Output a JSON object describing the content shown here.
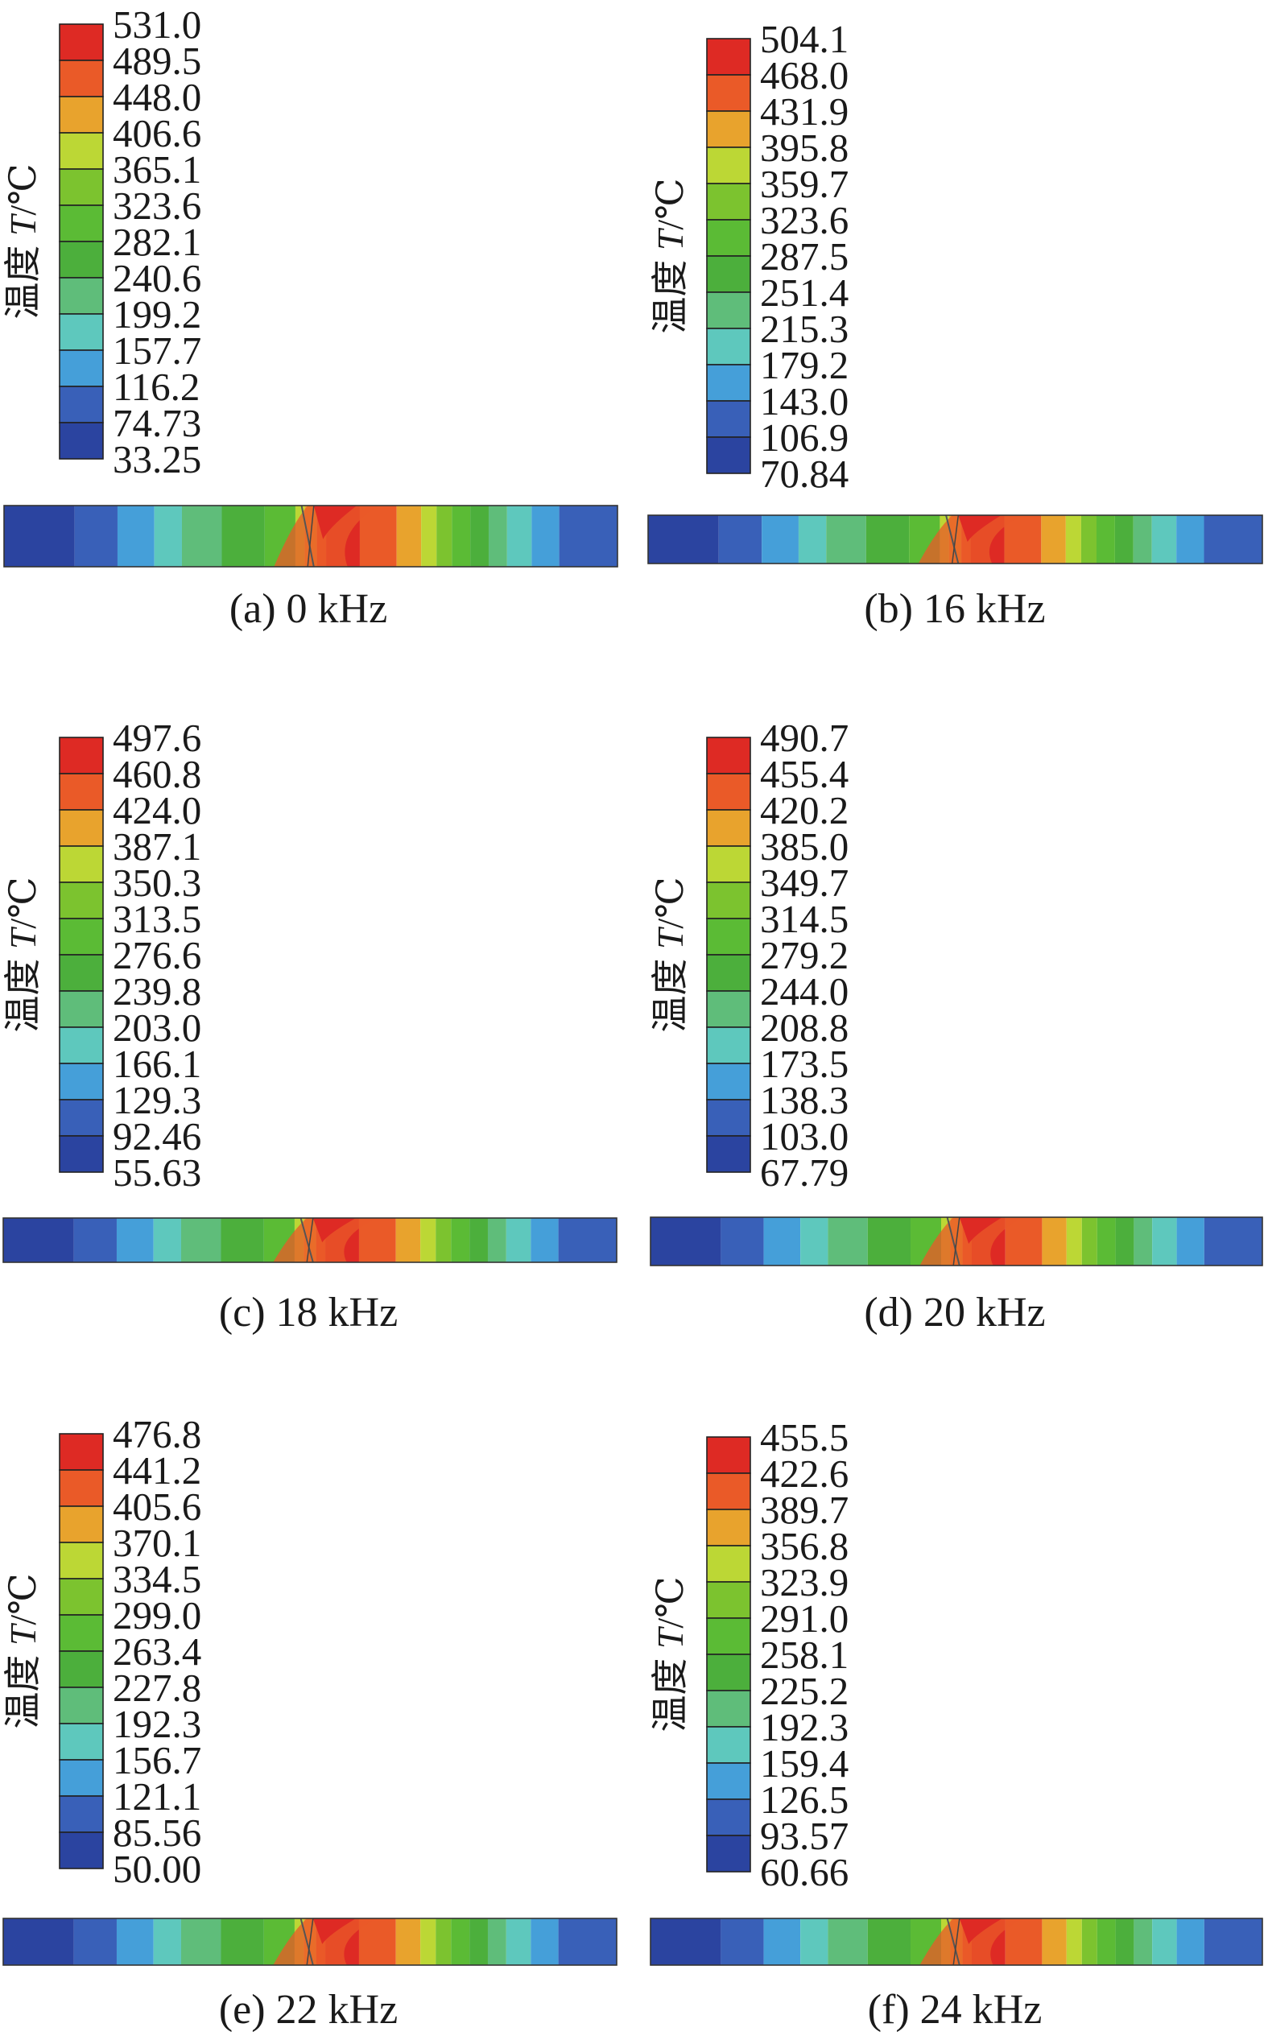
{
  "legend_palette": [
    "#2b44a0",
    "#3960b8",
    "#459fd9",
    "#5ec8bd",
    "#5fbd7a",
    "#4caf3c",
    "#5bbb35",
    "#7cc32f",
    "#bcd735",
    "#e8a32d",
    "#ea5a28",
    "#de2a24"
  ],
  "legend_title": {
    "prefix": "温度 ",
    "symbol": "T",
    "unit": "/℃"
  },
  "chart_data": [
    {
      "type": "heatmap",
      "title": "(a) 0 kHz",
      "legend_label": "温度 T/℃",
      "legend_levels": [
        "531.0",
        "489.5",
        "448.0",
        "406.6",
        "365.1",
        "323.6",
        "282.1",
        "240.6",
        "199.2",
        "157.7",
        "116.2",
        "74.73",
        "33.25"
      ],
      "vmin": 33.25,
      "vmax": 531.0,
      "field": "temperature distribution along welded strip"
    },
    {
      "type": "heatmap",
      "title": "(b) 16 kHz",
      "legend_label": "温度 T/℃",
      "legend_levels": [
        "504.1",
        "468.0",
        "431.9",
        "395.8",
        "359.7",
        "323.6",
        "287.5",
        "251.4",
        "215.3",
        "179.2",
        "143.0",
        "106.9",
        "70.84"
      ],
      "vmin": 70.84,
      "vmax": 504.1,
      "field": "temperature distribution along welded strip"
    },
    {
      "type": "heatmap",
      "title": "(c) 18 kHz",
      "legend_label": "温度 T/℃",
      "legend_levels": [
        "497.6",
        "460.8",
        "424.0",
        "387.1",
        "350.3",
        "313.5",
        "276.6",
        "239.8",
        "203.0",
        "166.1",
        "129.3",
        "92.46",
        "55.63"
      ],
      "vmin": 55.63,
      "vmax": 497.6,
      "field": "temperature distribution along welded strip"
    },
    {
      "type": "heatmap",
      "title": "(d) 20 kHz",
      "legend_label": "温度 T/℃",
      "legend_levels": [
        "490.7",
        "455.4",
        "420.2",
        "385.0",
        "349.7",
        "314.5",
        "279.2",
        "244.0",
        "208.8",
        "173.5",
        "138.3",
        "103.0",
        "67.79"
      ],
      "vmin": 67.79,
      "vmax": 490.7,
      "field": "temperature distribution along welded strip"
    },
    {
      "type": "heatmap",
      "title": "(e) 22 kHz",
      "legend_label": "温度 T/℃",
      "legend_levels": [
        "476.8",
        "441.2",
        "405.6",
        "370.1",
        "334.5",
        "299.0",
        "263.4",
        "227.8",
        "192.3",
        "156.7",
        "121.1",
        "85.56",
        "50.00"
      ],
      "vmin": 50.0,
      "vmax": 476.8,
      "field": "temperature distribution along welded strip"
    },
    {
      "type": "heatmap",
      "title": "(f) 24 kHz",
      "legend_label": "温度 T/℃",
      "legend_levels": [
        "455.5",
        "422.6",
        "389.7",
        "356.8",
        "323.9",
        "291.0",
        "258.1",
        "225.2",
        "192.3",
        "159.4",
        "126.5",
        "93.57",
        "60.66"
      ],
      "vmin": 60.66,
      "vmax": 455.5,
      "field": "temperature distribution along welded strip"
    }
  ]
}
